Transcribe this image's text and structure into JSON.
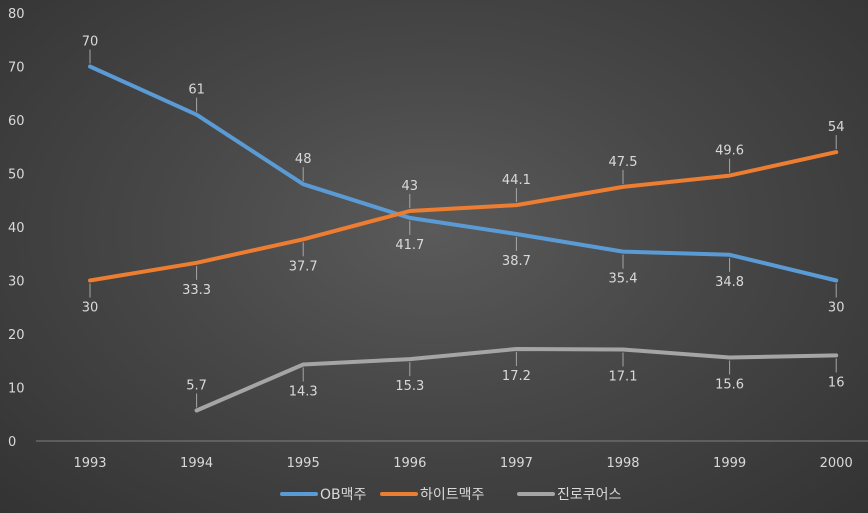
{
  "chart_data": {
    "type": "line",
    "title": "",
    "xlabel": "",
    "ylabel": "",
    "x": [
      "1993",
      "1994",
      "1995",
      "1996",
      "1997",
      "1998",
      "1999",
      "2000"
    ],
    "ylim": [
      0,
      80
    ],
    "yticks": [
      "0",
      "10",
      "20",
      "30",
      "40",
      "50",
      "60",
      "70",
      "80"
    ],
    "grid": false,
    "legend": "bottom",
    "series": [
      {
        "name": "OB맥주",
        "color": "#5b9bd5",
        "values": [
          70,
          61,
          48,
          41.7,
          38.7,
          35.4,
          34.8,
          30
        ],
        "labels": [
          "70",
          "61",
          "48",
          "41.7",
          "38.7",
          "35.4",
          "34.8",
          "30"
        ]
      },
      {
        "name": "하이트맥주",
        "color": "#ed7d31",
        "values": [
          30,
          33.3,
          37.7,
          43,
          44.1,
          47.5,
          49.6,
          54
        ],
        "labels": [
          "30",
          "33.3",
          "37.7",
          "43",
          "44.1",
          "47.5",
          "49.6",
          "54"
        ]
      },
      {
        "name": "진로쿠어스",
        "color": "#a5a5a5",
        "values": [
          null,
          5.7,
          14.3,
          15.3,
          17.2,
          17.1,
          15.6,
          16
        ],
        "labels": [
          null,
          "5.7",
          "14.3",
          "15.3",
          "17.2",
          "17.1",
          "15.6",
          "16"
        ]
      }
    ]
  }
}
